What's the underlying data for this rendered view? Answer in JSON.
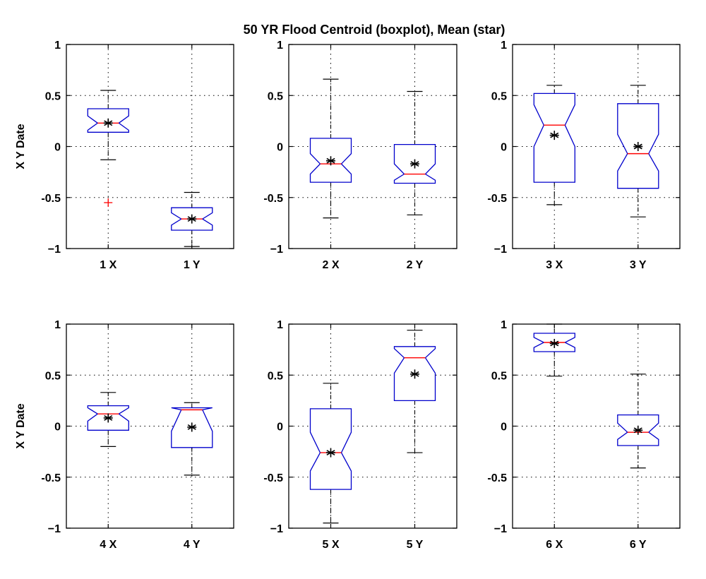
{
  "figure": {
    "title": "50 YR Flood Centroid (boxplot), Mean (star)"
  },
  "colors": {
    "box": "#0000cc",
    "median": "#ff0000",
    "whisker": "#000000",
    "outlier": "#ff0000",
    "mean": "#000000",
    "grid": "#000000"
  },
  "chart_data": [
    {
      "type": "boxplot",
      "ylabel": "X Y Date",
      "ylim": [
        -1,
        1
      ],
      "yticks": [
        "1",
        "0.5",
        "0",
        "-0.5",
        "−1"
      ],
      "ytick_values": [
        1,
        0.5,
        0,
        -0.5,
        -1
      ],
      "grid": true,
      "categories": [
        "1 X",
        "1 Y"
      ],
      "boxes": [
        {
          "low": -0.13,
          "q1": 0.14,
          "median": 0.23,
          "q3": 0.37,
          "high": 0.55,
          "notch_low": 0.16,
          "notch_high": 0.3,
          "mean": 0.23,
          "outliers": [
            -0.55
          ]
        },
        {
          "low": -0.98,
          "q1": -0.82,
          "median": -0.71,
          "q3": -0.6,
          "high": -0.45,
          "notch_low": -0.77,
          "notch_high": -0.65,
          "mean": -0.71,
          "outliers": []
        }
      ]
    },
    {
      "type": "boxplot",
      "ylabel": "",
      "ylim": [
        -1,
        1
      ],
      "yticks": [
        "1",
        "0.5",
        "0",
        "-0.5",
        "−1"
      ],
      "ytick_values": [
        1,
        0.5,
        0,
        -0.5,
        -1
      ],
      "grid": true,
      "categories": [
        "2 X",
        "2 Y"
      ],
      "boxes": [
        {
          "low": -0.7,
          "q1": -0.35,
          "median": -0.17,
          "q3": 0.08,
          "high": 0.66,
          "notch_low": -0.27,
          "notch_high": -0.07,
          "mean": -0.14,
          "outliers": []
        },
        {
          "low": -0.67,
          "q1": -0.36,
          "median": -0.27,
          "q3": 0.02,
          "high": 0.54,
          "notch_low": -0.33,
          "notch_high": -0.17,
          "mean": -0.17,
          "outliers": []
        }
      ]
    },
    {
      "type": "boxplot",
      "ylabel": "",
      "ylim": [
        -1,
        1
      ],
      "yticks": [
        "1",
        "0.5",
        "0",
        "-0.5",
        "−1"
      ],
      "ytick_values": [
        1,
        0.5,
        0,
        -0.5,
        -1
      ],
      "grid": true,
      "categories": [
        "3 X",
        "3 Y"
      ],
      "boxes": [
        {
          "low": -0.57,
          "q1": -0.35,
          "median": 0.21,
          "q3": 0.52,
          "high": 0.6,
          "notch_low": 0.0,
          "notch_high": 0.41,
          "mean": 0.11,
          "outliers": []
        },
        {
          "low": -0.69,
          "q1": -0.41,
          "median": -0.07,
          "q3": 0.42,
          "high": 0.6,
          "notch_low": -0.24,
          "notch_high": 0.12,
          "mean": 0.0,
          "outliers": []
        }
      ]
    },
    {
      "type": "boxplot",
      "ylabel": "X Y Date",
      "ylim": [
        -1,
        1
      ],
      "yticks": [
        "1",
        "0.5",
        "0",
        "-0.5",
        "−1"
      ],
      "ytick_values": [
        1,
        0.5,
        0,
        -0.5,
        -1
      ],
      "grid": true,
      "categories": [
        "4 X",
        "4 Y"
      ],
      "boxes": [
        {
          "low": -0.2,
          "q1": -0.04,
          "median": 0.12,
          "q3": 0.2,
          "high": 0.33,
          "notch_low": 0.05,
          "notch_high": 0.18,
          "mean": 0.08,
          "outliers": []
        },
        {
          "low": -0.48,
          "q1": -0.21,
          "median": 0.16,
          "q3": 0.18,
          "high": 0.23,
          "notch_low": -0.05,
          "notch_high": 0.18,
          "mean": -0.01,
          "outliers": []
        }
      ]
    },
    {
      "type": "boxplot",
      "ylabel": "",
      "ylim": [
        -1,
        1
      ],
      "yticks": [
        "1",
        "0.5",
        "0",
        "-0.5",
        "−1"
      ],
      "ytick_values": [
        1,
        0.5,
        0,
        -0.5,
        -1
      ],
      "grid": true,
      "categories": [
        "5 X",
        "5 Y"
      ],
      "boxes": [
        {
          "low": -0.95,
          "q1": -0.62,
          "median": -0.26,
          "q3": 0.17,
          "high": 0.42,
          "notch_low": -0.44,
          "notch_high": -0.06,
          "mean": -0.26,
          "outliers": []
        },
        {
          "low": -0.26,
          "q1": 0.25,
          "median": 0.67,
          "q3": 0.78,
          "high": 0.94,
          "notch_low": 0.52,
          "notch_high": 0.76,
          "mean": 0.51,
          "outliers": []
        }
      ]
    },
    {
      "type": "boxplot",
      "ylabel": "",
      "ylim": [
        -1,
        1
      ],
      "yticks": [
        "1",
        "0.5",
        "0",
        "-0.5",
        "−1"
      ],
      "ytick_values": [
        1,
        0.5,
        0,
        -0.5,
        -1
      ],
      "grid": true,
      "categories": [
        "6 X",
        "6 Y"
      ],
      "boxes": [
        {
          "low": 0.49,
          "q1": 0.73,
          "median": 0.82,
          "q3": 0.91,
          "high": 1.0,
          "notch_low": 0.77,
          "notch_high": 0.87,
          "mean": 0.81,
          "outliers": []
        },
        {
          "low": -0.41,
          "q1": -0.19,
          "median": -0.06,
          "q3": 0.11,
          "high": 0.51,
          "notch_low": -0.13,
          "notch_high": 0.03,
          "mean": -0.04,
          "outliers": []
        }
      ]
    }
  ]
}
